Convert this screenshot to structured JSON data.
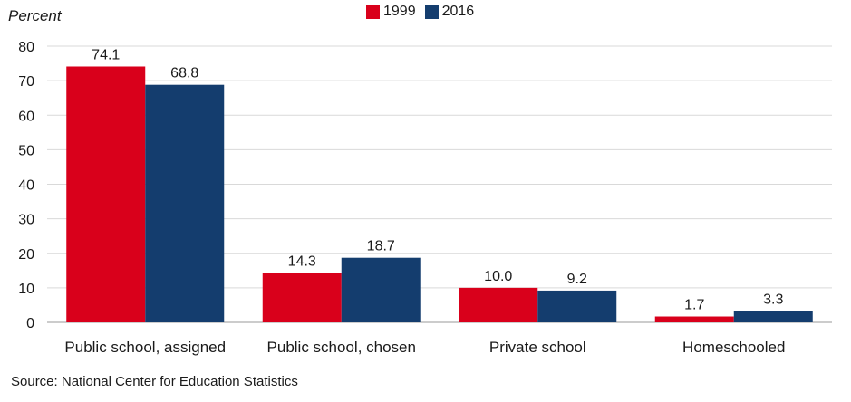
{
  "chart_data": {
    "type": "bar",
    "ylabel": "Percent",
    "categories": [
      "Public school, assigned",
      "Public school, chosen",
      "Private school",
      "Homeschooled"
    ],
    "series": [
      {
        "name": "1999",
        "color": "#d9001b",
        "values": [
          74.1,
          14.3,
          10.0,
          1.7
        ],
        "labels": [
          "74.1",
          "14.3",
          "10.0",
          "1.7"
        ]
      },
      {
        "name": "2016",
        "color": "#143d6e",
        "values": [
          68.8,
          18.7,
          9.2,
          3.3
        ],
        "labels": [
          "68.8",
          "18.7",
          "9.2",
          "3.3"
        ]
      }
    ],
    "ylim": [
      0,
      80
    ],
    "yticks": [
      0,
      10,
      20,
      30,
      40,
      50,
      60,
      70,
      80
    ],
    "grid": true,
    "legend_position": "top-center"
  },
  "source": "Source: National Center for Education Statistics"
}
